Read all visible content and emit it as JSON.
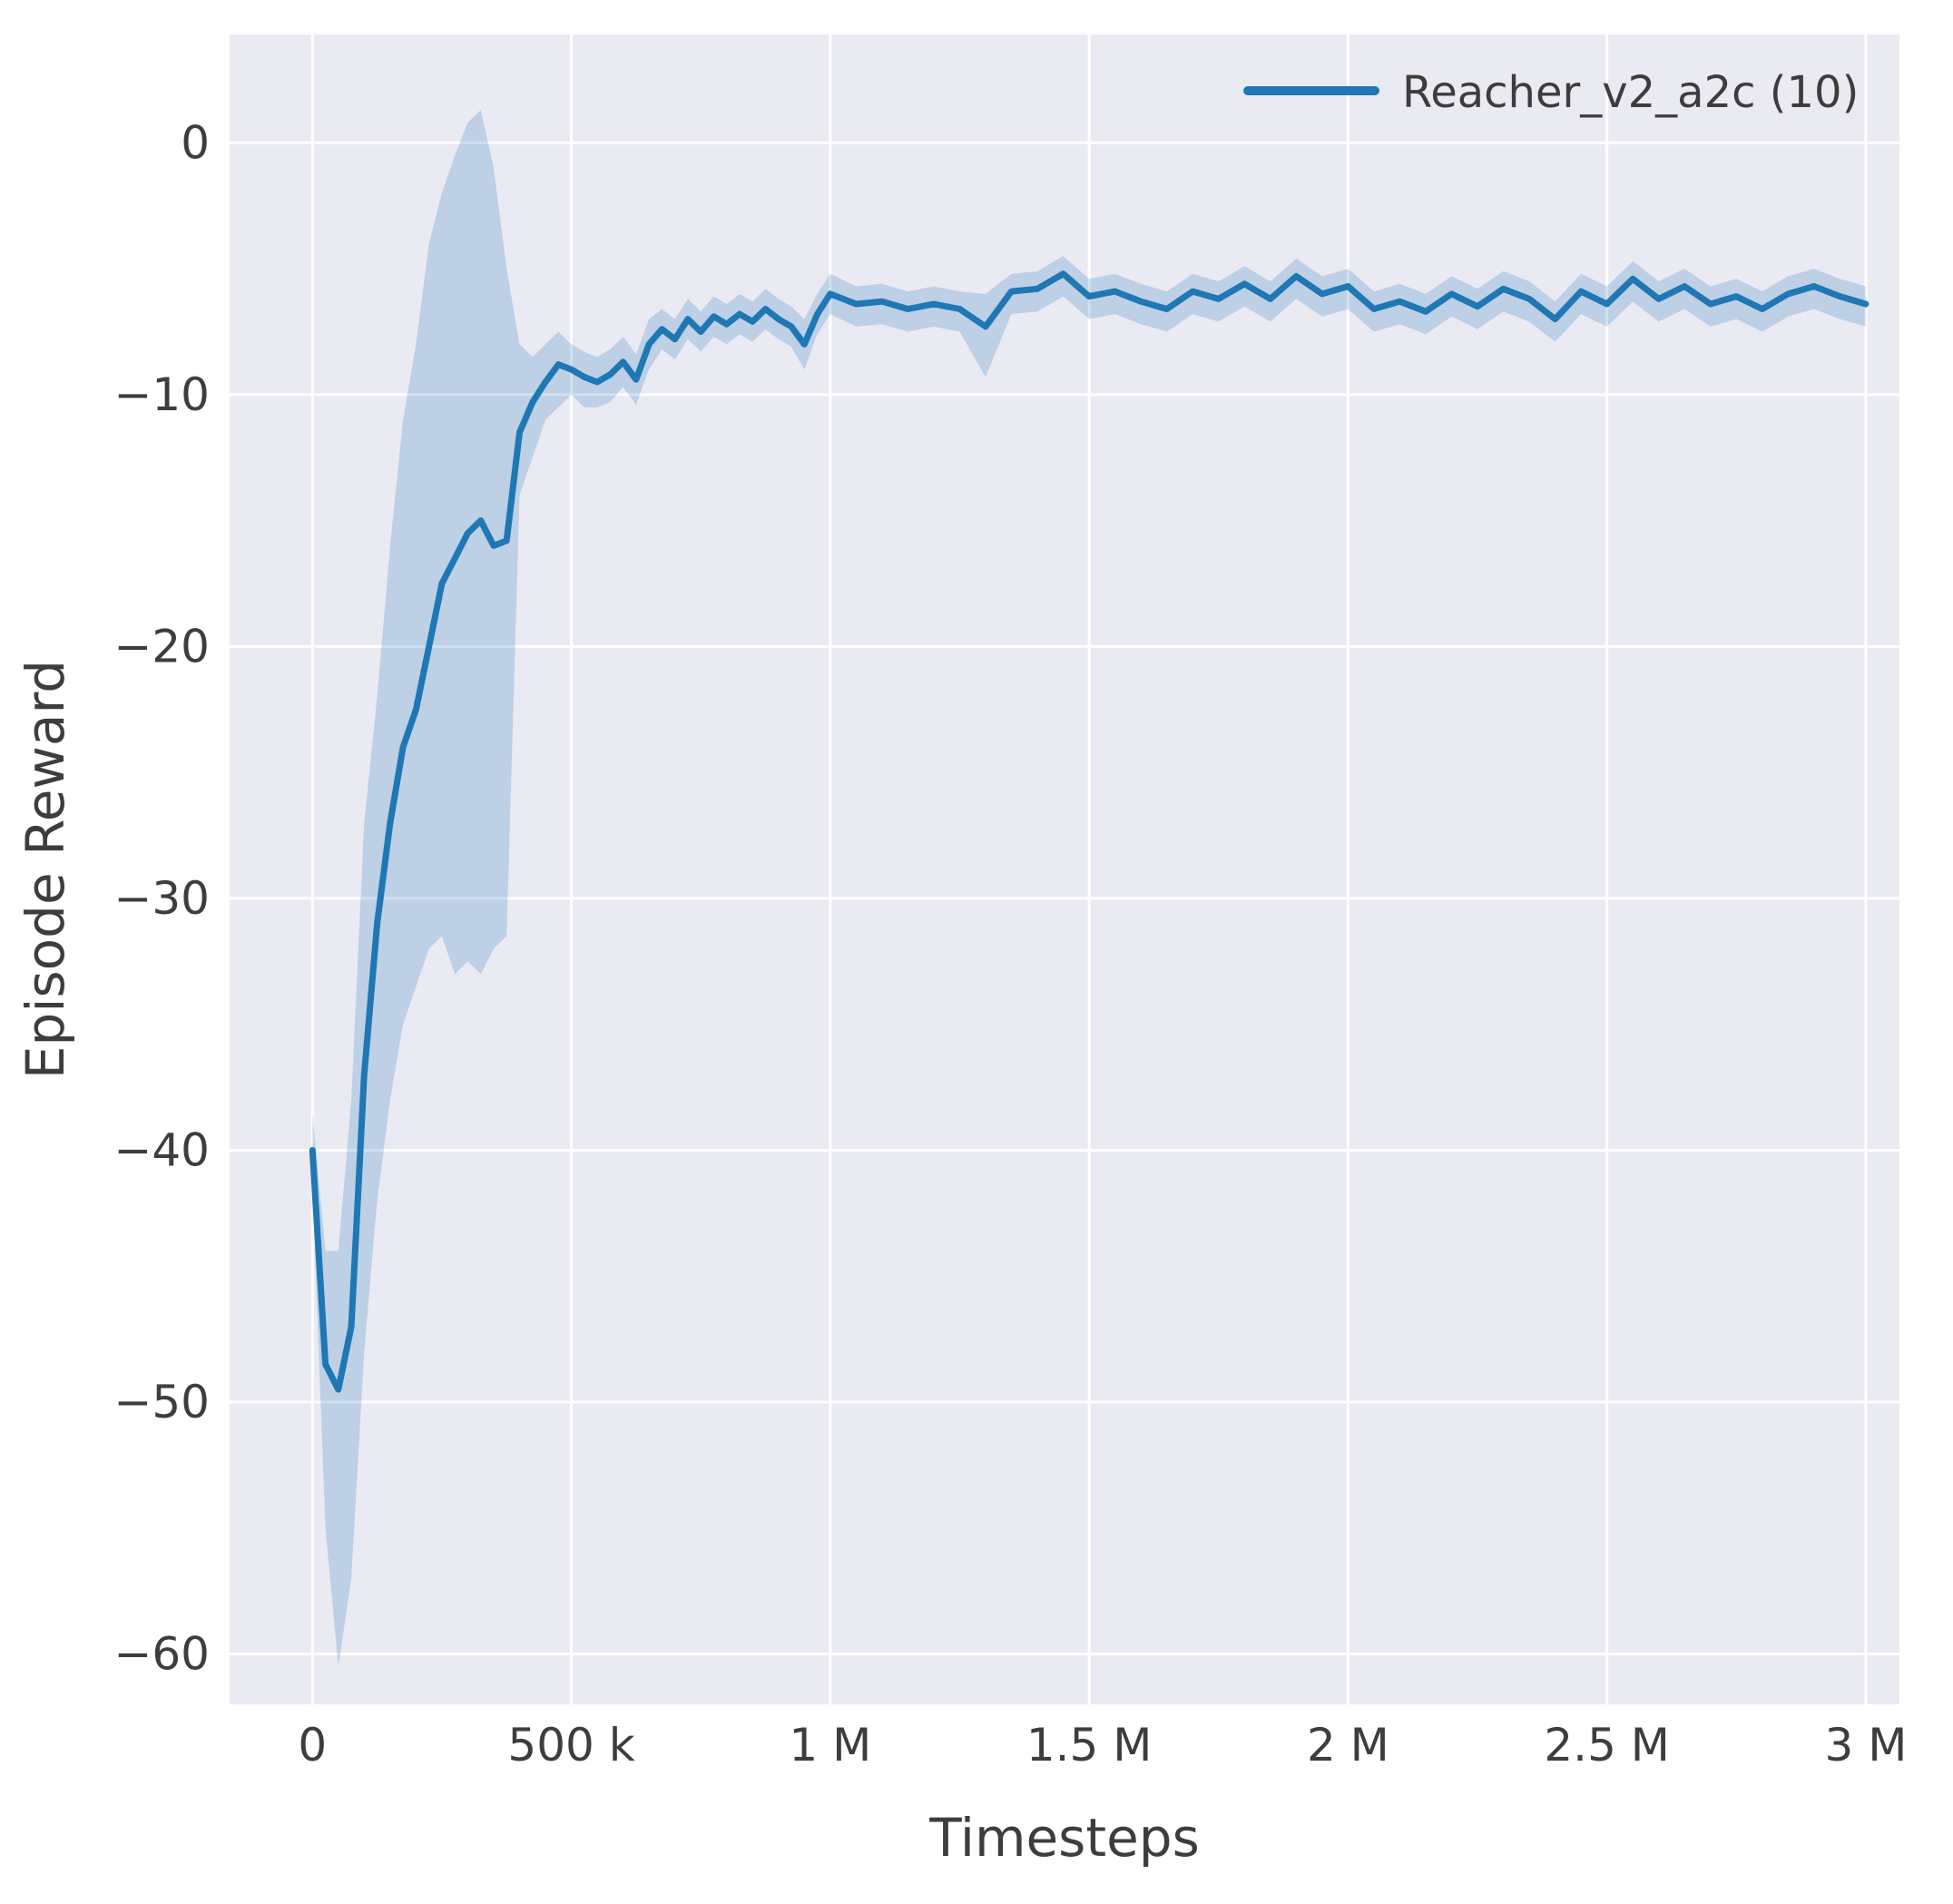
{
  "chart_data": {
    "type": "line",
    "title": "",
    "xlabel": "Timesteps",
    "ylabel": "Episode Reward",
    "x_unit": "timesteps (values stored in thousands)",
    "xlim_k": [
      -160,
      3065
    ],
    "ylim": [
      -62,
      4.3
    ],
    "grid": true,
    "legend_position": "upper right",
    "xticks": {
      "values_k": [
        0,
        500,
        1000,
        1500,
        2000,
        2500,
        3000
      ],
      "labels": [
        "0",
        "500 k",
        "1 M",
        "1.5 M",
        "2 M",
        "2.5 M",
        "3 M"
      ]
    },
    "yticks": {
      "values": [
        0,
        -10,
        -20,
        -30,
        -40,
        -50,
        -60
      ],
      "labels": [
        "0",
        "−10",
        "−20",
        "−30",
        "−40",
        "−50",
        "−60"
      ]
    },
    "colors": {
      "plot_background": "#eaeaf2",
      "grid": "#ffffff",
      "line": "#1f77b4",
      "band": "#1f77b4",
      "band_opacity": 0.22,
      "text": "#3d3d3d"
    },
    "series": [
      {
        "name": "Reacher_v2_a2c (10)",
        "color": "#1f77b4",
        "x_k": [
          0,
          25,
          50,
          75,
          100,
          125,
          150,
          175,
          200,
          225,
          250,
          275,
          300,
          325,
          350,
          375,
          400,
          425,
          450,
          475,
          500,
          525,
          550,
          575,
          600,
          625,
          650,
          675,
          700,
          725,
          750,
          775,
          800,
          825,
          850,
          875,
          900,
          925,
          950,
          975,
          1000,
          1050,
          1100,
          1150,
          1200,
          1250,
          1300,
          1350,
          1400,
          1450,
          1500,
          1550,
          1600,
          1650,
          1700,
          1750,
          1800,
          1850,
          1900,
          1950,
          2000,
          2050,
          2100,
          2150,
          2200,
          2250,
          2300,
          2350,
          2400,
          2450,
          2500,
          2550,
          2600,
          2650,
          2700,
          2750,
          2800,
          2850,
          2900,
          2950,
          3000
        ],
        "y": [
          -40,
          -48.5,
          -49.5,
          -47,
          -37,
          -31,
          -27,
          -24,
          -22.5,
          -20,
          -17.5,
          -16.5,
          -15.5,
          -15,
          -16,
          -15.8,
          -11.5,
          -10.3,
          -9.5,
          -8.8,
          -9,
          -9.3,
          -9.5,
          -9.2,
          -8.7,
          -9.4,
          -8,
          -7.4,
          -7.8,
          -7,
          -7.5,
          -6.9,
          -7.2,
          -6.8,
          -7.1,
          -6.6,
          -7,
          -7.3,
          -8,
          -6.8,
          -6,
          -6.4,
          -6.3,
          -6.6,
          -6.4,
          -6.6,
          -7.3,
          -5.9,
          -5.8,
          -5.2,
          -6.1,
          -5.9,
          -6.3,
          -6.6,
          -5.9,
          -6.2,
          -5.6,
          -6.2,
          -5.3,
          -6,
          -5.7,
          -6.6,
          -6.3,
          -6.7,
          -6,
          -6.5,
          -5.8,
          -6.2,
          -7,
          -5.9,
          -6.4,
          -5.4,
          -6.2,
          -5.7,
          -6.4,
          -6.1,
          -6.6,
          -6,
          -5.7,
          -6.1,
          -6.4
        ],
        "band_lower": [
          -41.5,
          -55,
          -60.5,
          -57,
          -48,
          -42,
          -38,
          -35,
          -33.5,
          -32,
          -31.5,
          -33,
          -32.5,
          -33,
          -32,
          -31.5,
          -14,
          -12.5,
          -11,
          -10.5,
          -10,
          -10.5,
          -10.5,
          -10.3,
          -9.7,
          -10.4,
          -9,
          -8.2,
          -8.6,
          -7.8,
          -8.3,
          -7.7,
          -8,
          -7.6,
          -7.9,
          -7.4,
          -7.8,
          -8.1,
          -9,
          -7.6,
          -6.8,
          -7.3,
          -7.2,
          -7.5,
          -7.3,
          -7.5,
          -9.3,
          -6.8,
          -6.7,
          -6.1,
          -7,
          -6.8,
          -7.2,
          -7.5,
          -6.8,
          -7.1,
          -6.5,
          -7.1,
          -6.2,
          -6.9,
          -6.6,
          -7.5,
          -7.2,
          -7.6,
          -6.9,
          -7.4,
          -6.7,
          -7.1,
          -7.9,
          -6.8,
          -7.3,
          -6.3,
          -7.1,
          -6.6,
          -7.3,
          -7,
          -7.5,
          -6.9,
          -6.6,
          -7,
          -7.3
        ],
        "band_upper": [
          -38.5,
          -44,
          -44,
          -38,
          -27,
          -22,
          -16,
          -11,
          -8,
          -4,
          -2,
          -0.5,
          0.8,
          1.3,
          -1,
          -5,
          -8,
          -8.5,
          -8,
          -7.5,
          -8,
          -8.3,
          -8.5,
          -8.2,
          -7.7,
          -8.4,
          -7,
          -6.6,
          -7,
          -6.2,
          -6.7,
          -6.1,
          -6.4,
          -6,
          -6.3,
          -5.8,
          -6.2,
          -6.5,
          -7,
          -6,
          -5.2,
          -5.7,
          -5.6,
          -5.9,
          -5.7,
          -5.9,
          -6,
          -5.2,
          -5.1,
          -4.5,
          -5.4,
          -5.2,
          -5.6,
          -5.9,
          -5.2,
          -5.5,
          -4.9,
          -5.5,
          -4.6,
          -5.3,
          -5,
          -5.9,
          -5.6,
          -6,
          -5.3,
          -5.8,
          -5.1,
          -5.5,
          -6.3,
          -5.2,
          -5.7,
          -4.7,
          -5.5,
          -5,
          -5.7,
          -5.4,
          -5.9,
          -5.3,
          -5,
          -5.4,
          -5.7
        ]
      }
    ]
  }
}
